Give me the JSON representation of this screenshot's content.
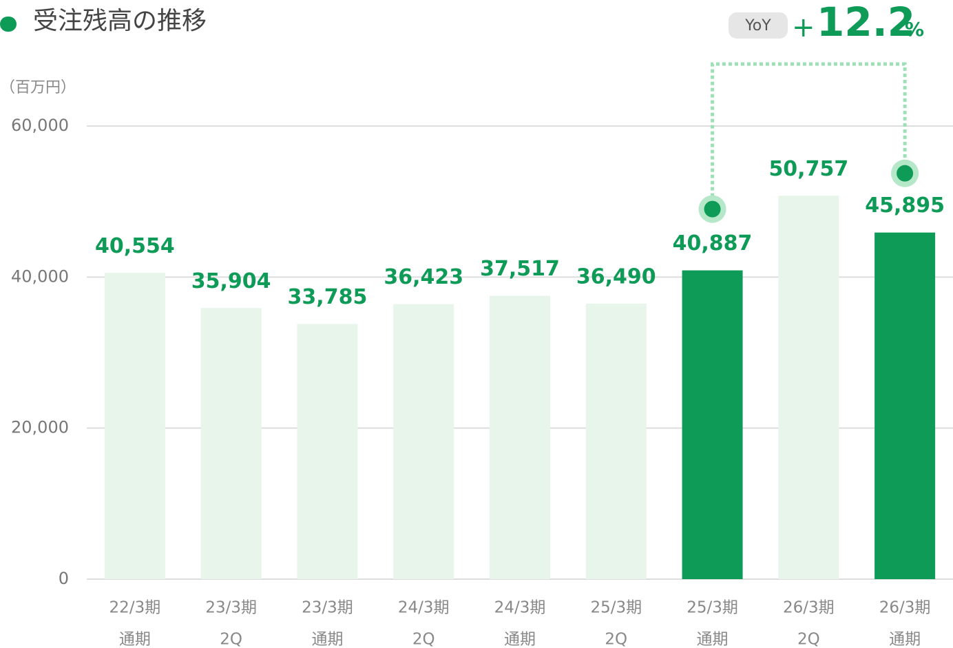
{
  "chart_data": {
    "type": "bar",
    "title": "受注残高の推移",
    "unit": "（百万円）",
    "categories": [
      [
        "22/3期",
        "通期"
      ],
      [
        "23/3期",
        "2Q"
      ],
      [
        "23/3期",
        "通期"
      ],
      [
        "24/3期",
        "2Q"
      ],
      [
        "24/3期",
        "通期"
      ],
      [
        "25/3期",
        "2Q"
      ],
      [
        "25/3期",
        "通期"
      ],
      [
        "26/3期",
        "2Q"
      ],
      [
        "26/3期",
        "通期"
      ]
    ],
    "values": [
      40554,
      35904,
      33785,
      36423,
      37517,
      36490,
      40887,
      50757,
      45895
    ],
    "value_labels": [
      "40,554",
      "35,904",
      "33,785",
      "36,423",
      "37,517",
      "36,490",
      "40,887",
      "50,757",
      "45,895"
    ],
    "colors": [
      "#e7f5ea",
      "#e7f5ea",
      "#e7f5ea",
      "#e7f5ea",
      "#e7f5ea",
      "#e7f5ea",
      "#0e9a57",
      "#e7f5ea",
      "#0e9a57"
    ],
    "label_color": "#0e9a57",
    "ylim": [
      0,
      60000
    ],
    "yticks": [
      0,
      {
        "value": 20000,
        "label": "20,000"
      },
      {
        "value": 40000,
        "label": "40,000"
      },
      {
        "value": 60000,
        "label": "60,000"
      }
    ],
    "grid": true,
    "annotation": {
      "badge": "YoY",
      "sign": "+",
      "value": "12.2",
      "unit": "%"
    }
  }
}
